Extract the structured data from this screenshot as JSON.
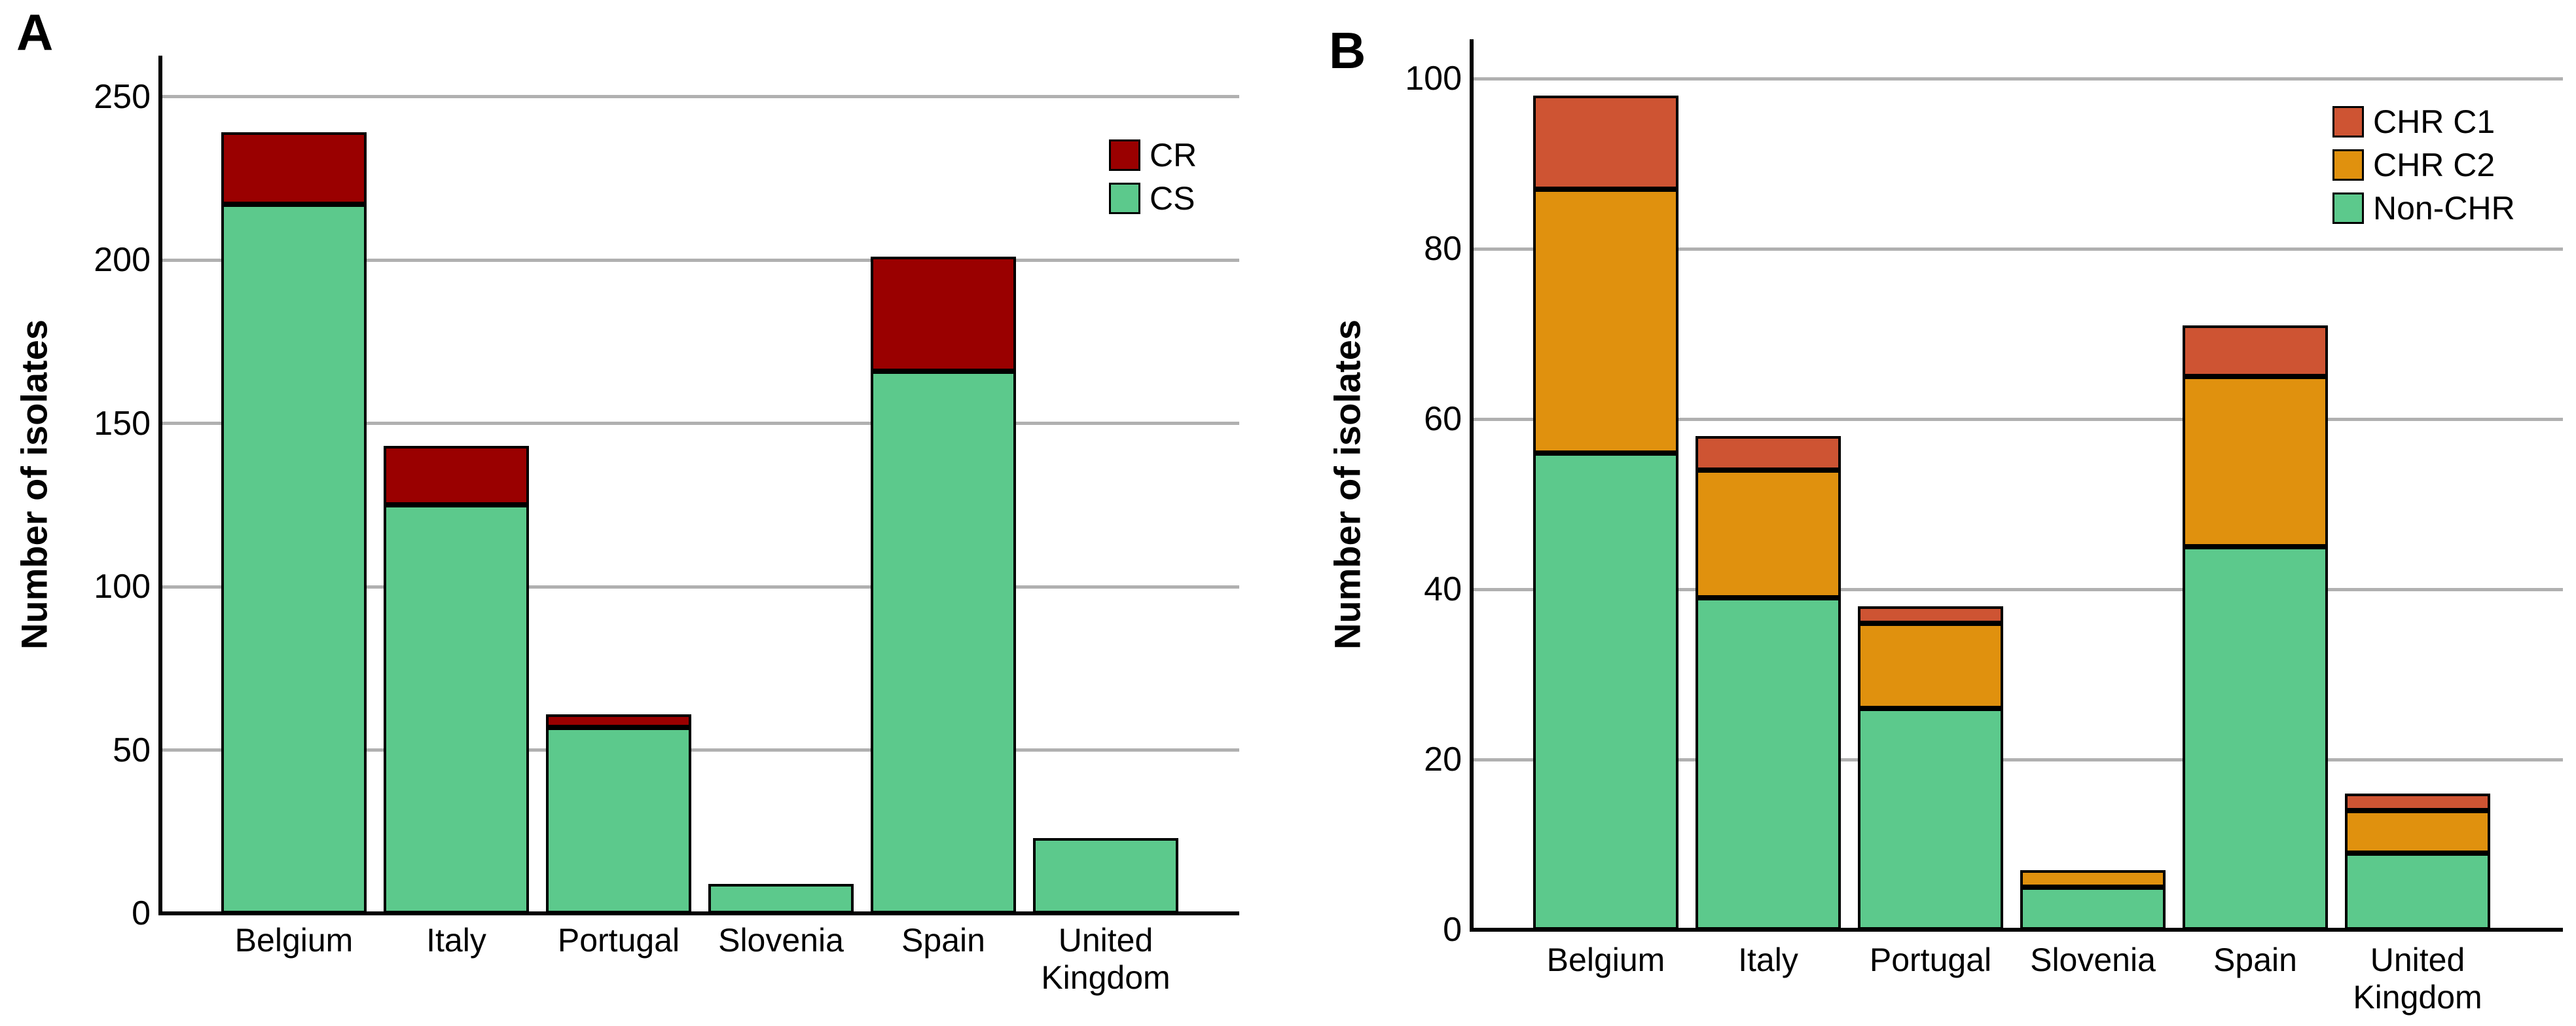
{
  "colors": {
    "background": "#FFFFFF",
    "gridline": "#B0B0B0",
    "axis": "#000000",
    "cs_green": "#5CC98C",
    "cr_dark_red": "#9A0000",
    "chr_c1_red": "#CE5433",
    "chr_c2_orange": "#E0910E"
  },
  "chart_data": [
    {
      "type": "bar",
      "stacked": true,
      "letter": "A",
      "ylabel": "Number of isolates",
      "xlabel": "",
      "categories": [
        "Belgium",
        "Italy",
        "Portugal",
        "Slovenia",
        "Spain",
        "United Kingdom"
      ],
      "series": [
        {
          "name": "CS",
          "color": "#5CC98C",
          "values": [
            217,
            125,
            57,
            9,
            166,
            23
          ]
        },
        {
          "name": "CR",
          "color": "#9A0000",
          "values": [
            22,
            18,
            4,
            0,
            35,
            0
          ]
        }
      ],
      "totals": [
        239,
        143,
        61,
        9,
        201,
        23
      ],
      "legend": [
        "CR",
        "CS"
      ],
      "legend_position": "top-right",
      "y_ticks": [
        0,
        50,
        100,
        150,
        200,
        250
      ],
      "ylim": [
        0,
        262
      ],
      "grid": true
    },
    {
      "type": "bar",
      "stacked": true,
      "letter": "B",
      "ylabel": "Number of isolates",
      "xlabel": "",
      "categories": [
        "Belgium",
        "Italy",
        "Portugal",
        "Slovenia",
        "Spain",
        "United Kingdom"
      ],
      "series": [
        {
          "name": "Non-CHR",
          "color": "#5CC98C",
          "values": [
            56,
            39,
            26,
            5,
            45,
            9
          ]
        },
        {
          "name": "CHR C2",
          "color": "#E0910E",
          "values": [
            31,
            15,
            10,
            2,
            20,
            5
          ]
        },
        {
          "name": "CHR C1",
          "color": "#CE5433",
          "values": [
            11,
            4,
            2,
            0,
            6,
            2
          ]
        }
      ],
      "totals": [
        98,
        58,
        38,
        7,
        71,
        16
      ],
      "legend": [
        "CHR C1",
        "CHR C2",
        "Non-CHR"
      ],
      "legend_position": "top-right",
      "y_ticks": [
        0,
        20,
        40,
        60,
        80,
        100
      ],
      "ylim": [
        0,
        105
      ],
      "grid": true
    }
  ]
}
